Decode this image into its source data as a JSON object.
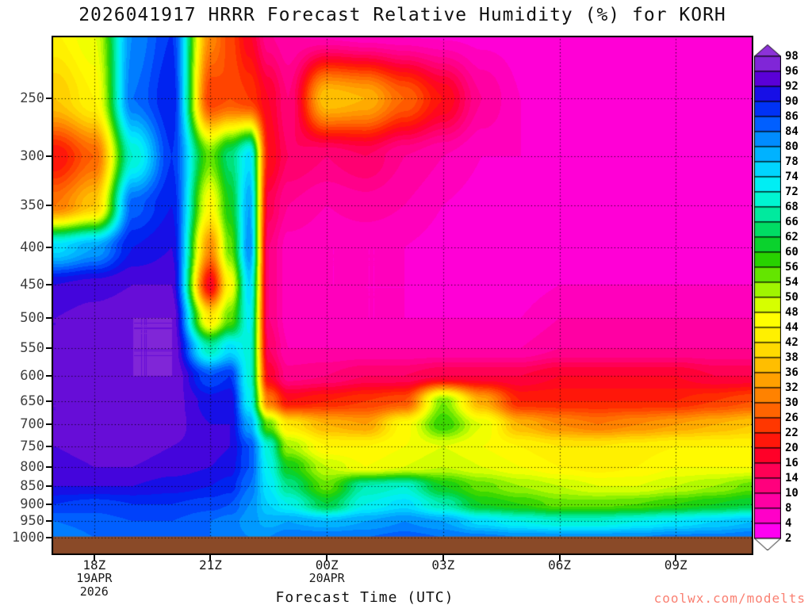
{
  "chart_data": {
    "type": "heatmap",
    "title": "2026041917 HRRR Forecast Relative Humidity (%) for KORH",
    "xlabel": "Forecast Time (UTC)",
    "watermark": "coolwx.com/modelts",
    "watermark_color": "#fa8072",
    "y_axis": {
      "scale": "log-pressure",
      "units": "hPa",
      "ticks": [
        250,
        300,
        350,
        400,
        450,
        500,
        550,
        600,
        650,
        700,
        750,
        800,
        850,
        900,
        950,
        1000
      ],
      "top_hpa": 205,
      "bottom_hpa": 1057
    },
    "x_axis": {
      "start_hour_utc": 16.9,
      "end_hour_utc": 35.0,
      "ticks": [
        {
          "hour": 18,
          "label": "18Z",
          "sub": [
            "19APR",
            "2026"
          ]
        },
        {
          "hour": 21,
          "label": "21Z"
        },
        {
          "hour": 24,
          "label": "00Z",
          "sub": [
            "20APR"
          ]
        },
        {
          "hour": 27,
          "label": "03Z"
        },
        {
          "hour": 30,
          "label": "06Z"
        },
        {
          "hour": 33,
          "label": "09Z"
        }
      ]
    },
    "colorbar": {
      "labels": [
        98,
        96,
        92,
        90,
        86,
        84,
        80,
        78,
        74,
        72,
        68,
        66,
        62,
        60,
        56,
        54,
        50,
        48,
        44,
        42,
        38,
        36,
        32,
        30,
        26,
        22,
        20,
        16,
        14,
        10,
        8,
        4,
        2
      ]
    },
    "colormap": [
      [
        2,
        "#ff00ff"
      ],
      [
        6,
        "#ff00c8"
      ],
      [
        10,
        "#ff0096"
      ],
      [
        14,
        "#ff0064"
      ],
      [
        18,
        "#ff0028"
      ],
      [
        22,
        "#ff1e00"
      ],
      [
        26,
        "#ff5000"
      ],
      [
        30,
        "#ff7800"
      ],
      [
        34,
        "#ffa000"
      ],
      [
        38,
        "#ffc800"
      ],
      [
        42,
        "#ffeb00"
      ],
      [
        46,
        "#ffff00"
      ],
      [
        50,
        "#c8ff00"
      ],
      [
        54,
        "#78eb00"
      ],
      [
        58,
        "#28d200"
      ],
      [
        62,
        "#00d23c"
      ],
      [
        66,
        "#00e68c"
      ],
      [
        70,
        "#00f5d2"
      ],
      [
        74,
        "#00ebff"
      ],
      [
        78,
        "#00beff"
      ],
      [
        82,
        "#008cff"
      ],
      [
        86,
        "#0050ff"
      ],
      [
        90,
        "#0014eb"
      ],
      [
        94,
        "#5a00d7"
      ],
      [
        98,
        "#8c32d7"
      ]
    ],
    "terrain": {
      "color": "#8a4a28",
      "top_hpa": 997
    },
    "grid": {
      "times_utc_hours": [
        17,
        18,
        19,
        20,
        21,
        21.5,
        22,
        22.5,
        23,
        24,
        25,
        26,
        27,
        28,
        29,
        30,
        31,
        32,
        33,
        34,
        35
      ],
      "pressures_hpa": [
        200,
        250,
        300,
        350,
        400,
        450,
        500,
        550,
        600,
        650,
        700,
        750,
        800,
        850,
        900,
        950,
        1000
      ],
      "rh_percent": [
        [
          44,
          48,
          82,
          88,
          32,
          25,
          18,
          10,
          8,
          6,
          5,
          5,
          5,
          5,
          5,
          5,
          5,
          5,
          5,
          5,
          5
        ],
        [
          38,
          44,
          84,
          90,
          24,
          26,
          24,
          18,
          12,
          38,
          36,
          28,
          20,
          10,
          6,
          6,
          5,
          5,
          5,
          5,
          5
        ],
        [
          20,
          28,
          70,
          88,
          55,
          65,
          75,
          20,
          14,
          12,
          14,
          10,
          8,
          6,
          6,
          5,
          5,
          5,
          5,
          5,
          5
        ],
        [
          30,
          38,
          85,
          90,
          45,
          60,
          80,
          15,
          10,
          8,
          9,
          8,
          6,
          5,
          5,
          5,
          5,
          5,
          5,
          5,
          5
        ],
        [
          75,
          80,
          90,
          92,
          32,
          55,
          82,
          12,
          7,
          6,
          6,
          6,
          5,
          5,
          5,
          5,
          5,
          5,
          5,
          5,
          5
        ],
        [
          92,
          93,
          94,
          94,
          18,
          45,
          76,
          12,
          7,
          6,
          6,
          6,
          5,
          5,
          5,
          6,
          6,
          6,
          6,
          6,
          6
        ],
        [
          94,
          95,
          96,
          96,
          42,
          55,
          73,
          12,
          7,
          7,
          6,
          6,
          6,
          6,
          6,
          8,
          8,
          8,
          8,
          8,
          8
        ],
        [
          94,
          95,
          96,
          96,
          68,
          75,
          71,
          14,
          8,
          8,
          8,
          8,
          8,
          8,
          8,
          10,
          10,
          10,
          10,
          10,
          10
        ],
        [
          94,
          95,
          96,
          96,
          86,
          88,
          71,
          18,
          11,
          12,
          14,
          14,
          16,
          16,
          16,
          18,
          18,
          18,
          18,
          16,
          16
        ],
        [
          94,
          95,
          95,
          95,
          91,
          92,
          73,
          30,
          20,
          22,
          24,
          26,
          54,
          35,
          22,
          22,
          22,
          22,
          22,
          24,
          26
        ],
        [
          94,
          95,
          95,
          95,
          92,
          92,
          80,
          55,
          42,
          36,
          34,
          45,
          58,
          48,
          36,
          32,
          30,
          32,
          34,
          36,
          38
        ],
        [
          94,
          95,
          95,
          94,
          93,
          92,
          86,
          70,
          52,
          44,
          44,
          46,
          48,
          46,
          44,
          42,
          42,
          43,
          44,
          44,
          44
        ],
        [
          93,
          94,
          94,
          93,
          92,
          91,
          86,
          72,
          60,
          50,
          46,
          48,
          50,
          48,
          46,
          44,
          43,
          44,
          46,
          46,
          46
        ],
        [
          92,
          92,
          92,
          91,
          90,
          89,
          84,
          74,
          66,
          55,
          68,
          70,
          60,
          55,
          52,
          50,
          48,
          48,
          50,
          52,
          55
        ],
        [
          88,
          87,
          88,
          88,
          87,
          86,
          82,
          76,
          72,
          62,
          72,
          75,
          68,
          60,
          58,
          55,
          55,
          56,
          58,
          60,
          62
        ],
        [
          84,
          85,
          86,
          86,
          84,
          83,
          81,
          79,
          80,
          78,
          80,
          82,
          80,
          75,
          72,
          70,
          70,
          72,
          74,
          76,
          78
        ],
        [
          82,
          84,
          85,
          85,
          84,
          83,
          82,
          82,
          84,
          84,
          84,
          85,
          84,
          83,
          82,
          82,
          82,
          82,
          83,
          83,
          84
        ]
      ]
    }
  }
}
